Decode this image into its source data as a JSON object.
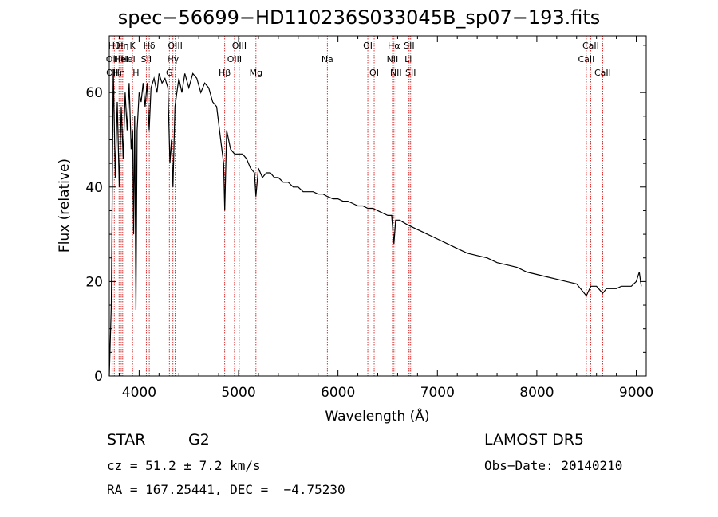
{
  "chart_data": {
    "type": "line",
    "title": "spec−56699−HD110236S033045B_sp07−193.fits",
    "xlabel": "Wavelength (Å)",
    "ylabel": "Flux (relative)",
    "xlim": [
      3700,
      9100
    ],
    "ylim": [
      0,
      72
    ],
    "x_ticks": [
      4000,
      5000,
      6000,
      7000,
      8000,
      9000
    ],
    "y_ticks": [
      0,
      20,
      40,
      60
    ],
    "line_color": "#000000",
    "marker_color": "#cc0000",
    "series": [
      {
        "x": [
          3700,
          3720,
          3740,
          3760,
          3780,
          3800,
          3820,
          3840,
          3860,
          3880,
          3900,
          3920,
          3935,
          3945,
          3955,
          3968,
          3980,
          4000,
          4020,
          4040,
          4060,
          4080,
          4101,
          4120,
          4150,
          4180,
          4200,
          4230,
          4260,
          4290,
          4310,
          4325,
          4340,
          4360,
          4380,
          4400,
          4430,
          4460,
          4500,
          4540,
          4580,
          4620,
          4660,
          4700,
          4740,
          4780,
          4820,
          4850,
          4861,
          4880,
          4920,
          4960,
          5000,
          5040,
          5080,
          5120,
          5160,
          5175,
          5200,
          5240,
          5280,
          5320,
          5360,
          5400,
          5450,
          5500,
          5550,
          5600,
          5650,
          5700,
          5750,
          5800,
          5850,
          5893,
          5950,
          6000,
          6050,
          6100,
          6150,
          6200,
          6250,
          6300,
          6350,
          6400,
          6450,
          6500,
          6540,
          6563,
          6580,
          6620,
          6660,
          6700,
          6750,
          6800,
          6850,
          6900,
          6950,
          7000,
          7100,
          7200,
          7300,
          7400,
          7500,
          7600,
          7700,
          7800,
          7900,
          8000,
          8100,
          8200,
          8300,
          8400,
          8498,
          8542,
          8600,
          8662,
          8700,
          8750,
          8800,
          8850,
          8900,
          8950,
          9000,
          9030,
          9050
        ],
        "y": [
          0,
          15,
          65,
          42,
          58,
          40,
          57,
          46,
          60,
          52,
          62,
          48,
          52,
          30,
          55,
          14,
          52,
          60,
          58,
          62,
          57,
          62,
          52,
          61,
          63,
          60,
          64,
          62,
          63,
          61,
          45,
          50,
          40,
          57,
          60,
          63,
          60,
          64,
          61,
          64,
          63,
          60,
          62,
          61,
          58,
          57,
          50,
          45,
          35,
          52,
          48,
          47,
          47,
          47,
          46,
          44,
          43,
          38,
          44,
          42,
          43,
          43,
          42,
          42,
          41,
          41,
          40,
          40,
          39,
          39,
          39,
          38.5,
          38.5,
          38,
          37.5,
          37.5,
          37,
          37,
          36.5,
          36,
          36,
          35.5,
          35.5,
          35,
          34.5,
          34,
          34,
          28,
          33,
          33,
          32.5,
          32,
          31.5,
          31,
          30.5,
          30,
          29.5,
          29,
          28,
          27,
          26,
          25.5,
          25,
          24,
          23.5,
          23,
          22,
          21.5,
          21,
          20.5,
          20,
          19.5,
          17,
          19,
          19,
          17.5,
          18.5,
          18.5,
          18.5,
          19,
          19,
          19,
          20,
          22,
          19
        ]
      }
    ],
    "lines": [
      {
        "wl": 3727,
        "label": "OII",
        "row": 2
      },
      {
        "wl": 3730,
        "label": "OII",
        "row": 3
      },
      {
        "wl": 3750,
        "label": "Hθ",
        "row": 1
      },
      {
        "wl": 3798,
        "label": "Hη",
        "row": 3
      },
      {
        "wl": 3820,
        "label": "HeI",
        "row": 2
      },
      {
        "wl": 3835,
        "label": "Hη",
        "row": 1
      },
      {
        "wl": 3889,
        "label": "HeI",
        "row": 2
      },
      {
        "wl": 3934,
        "label": "K",
        "row": 1
      },
      {
        "wl": 3968,
        "label": "H",
        "row": 3
      },
      {
        "wl": 4072,
        "label": "SII",
        "row": 2
      },
      {
        "wl": 4102,
        "label": "Hδ",
        "row": 1
      },
      {
        "wl": 4304,
        "label": "G",
        "row": 3
      },
      {
        "wl": 4340,
        "label": "Hγ",
        "row": 2
      },
      {
        "wl": 4363,
        "label": "OIII",
        "row": 1
      },
      {
        "wl": 4861,
        "label": "Hβ",
        "row": 3
      },
      {
        "wl": 4959,
        "label": "OIII",
        "row": 2
      },
      {
        "wl": 5007,
        "label": "OIII",
        "row": 1
      },
      {
        "wl": 5175,
        "label": "Mg",
        "row": 3
      },
      {
        "wl": 5893,
        "label": "Na",
        "row": 2
      },
      {
        "wl": 6300,
        "label": "OI",
        "row": 1
      },
      {
        "wl": 6364,
        "label": "OI",
        "row": 3
      },
      {
        "wl": 6548,
        "label": "NII",
        "row": 2
      },
      {
        "wl": 6563,
        "label": "Hα",
        "row": 1
      },
      {
        "wl": 6583,
        "label": "NII",
        "row": 3
      },
      {
        "wl": 6707,
        "label": "Li",
        "row": 2
      },
      {
        "wl": 6716,
        "label": "SII",
        "row": 1
      },
      {
        "wl": 6731,
        "label": "SII",
        "row": 3
      },
      {
        "wl": 8498,
        "label": "CaII",
        "row": 2
      },
      {
        "wl": 8542,
        "label": "CaII",
        "row": 1
      },
      {
        "wl": 8662,
        "label": "CaII",
        "row": 3
      }
    ]
  },
  "info": {
    "class": "STAR",
    "subclass": "G2",
    "survey": "LAMOST DR5",
    "cz": "cz = 51.2 ± 7.2 km/s",
    "obs_date": "Obs−Date: 20140210",
    "radec": "RA = 167.25441, DEC =  −4.75230"
  }
}
